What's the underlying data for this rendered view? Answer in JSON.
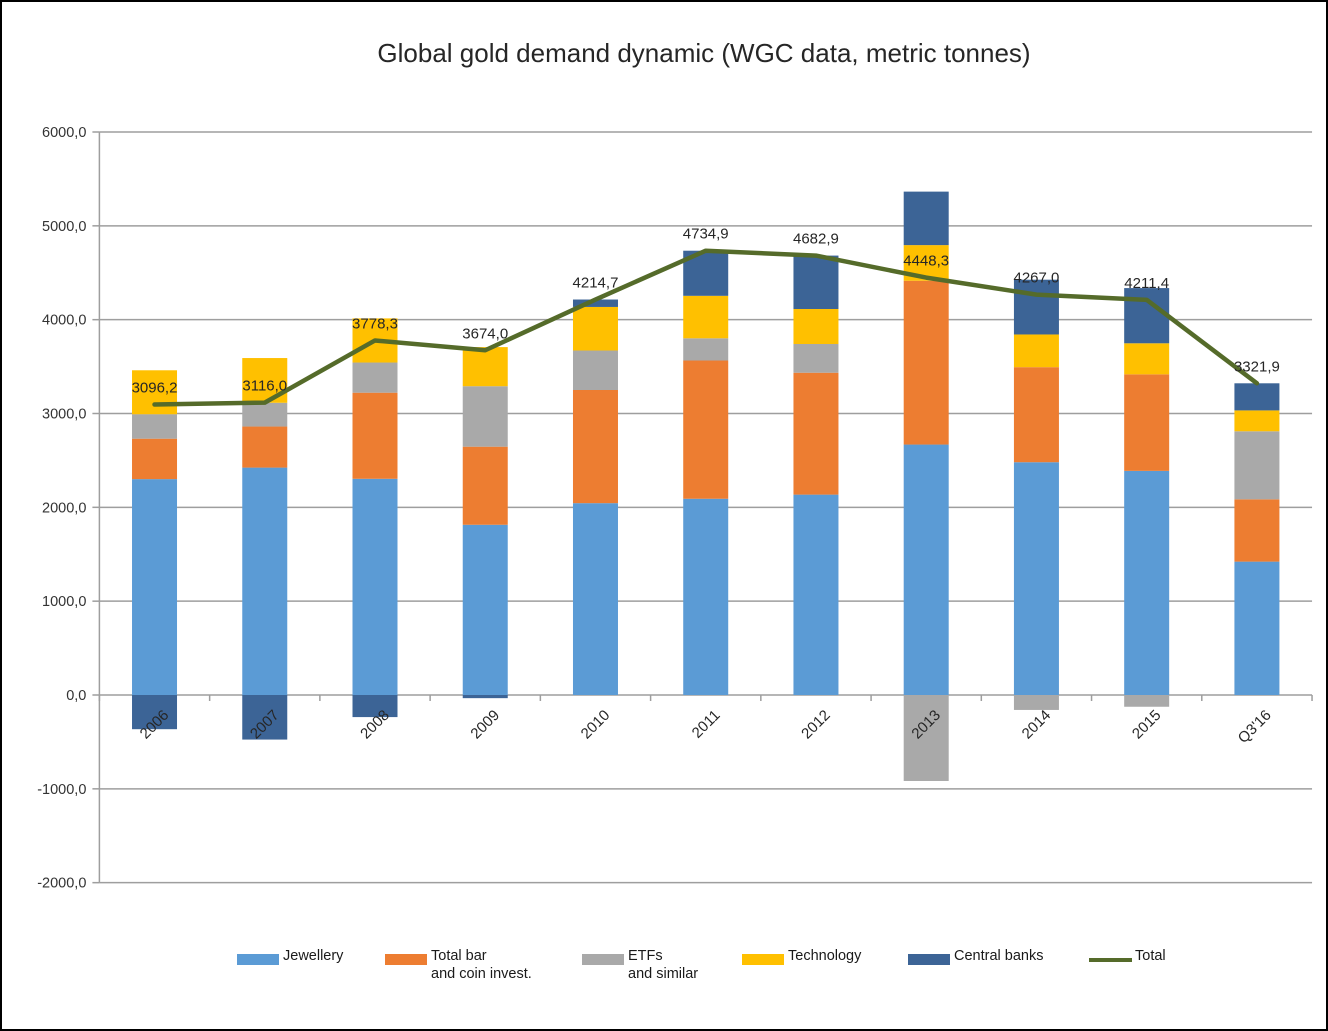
{
  "chart": {
    "title": "Global gold demand dynamic (WGC data, metric tonnes)"
  },
  "chart_data": {
    "type": "bar",
    "subtype": "stacked-column-with-line",
    "title": "Global gold demand dynamic (WGC data, metric tonnes)",
    "categories": [
      "2006",
      "2007",
      "2008",
      "2009",
      "2010",
      "2011",
      "2012",
      "2013",
      "2014",
      "2015",
      "Q3'16"
    ],
    "series": [
      {
        "name": "Jewellery",
        "legend_lines": [
          "Jewellery"
        ],
        "color": "#5B9BD5",
        "values": [
          2300.7,
          2423.5,
          2304.2,
          1814.1,
          2044.5,
          2091.5,
          2135.5,
          2669.0,
          2480.8,
          2388.6,
          1421.5
        ]
      },
      {
        "name": "Total bar and coin invest.",
        "legend_lines": [
          "Total bar",
          "and coin invest."
        ],
        "color": "#ED7D31",
        "values": [
          430.9,
          437.5,
          917.6,
          832.3,
          1205.9,
          1473.2,
          1299.1,
          1745.6,
          1012.9,
          1028.9,
          663.8
        ]
      },
      {
        "name": "ETFs and similar",
        "legend_lines": [
          "ETFs",
          "and similar"
        ],
        "color": "#A9A9A9",
        "values": [
          260.3,
          253.3,
          321.4,
          644.3,
          420.8,
          236.7,
          306.2,
          -916.3,
          -159.1,
          -125.2,
          725.2
        ]
      },
      {
        "name": "Technology",
        "legend_lines": [
          "Technology"
        ],
        "color": "#FFC000",
        "values": [
          468.7,
          476.7,
          470.5,
          416.9,
          464.3,
          452.7,
          372.8,
          380.0,
          348.5,
          330.7,
          222.5
        ]
      },
      {
        "name": "Central banks",
        "legend_lines": [
          "Central banks"
        ],
        "color": "#3C6496",
        "values": [
          -364.4,
          -475.0,
          -235.4,
          -33.6,
          79.2,
          480.8,
          569.3,
          570.0,
          583.9,
          588.4,
          288.9
        ]
      }
    ],
    "line_series": {
      "name": "Total",
      "legend_lines": [
        "Total"
      ],
      "color": "#556B2A",
      "values": [
        3096.2,
        3116.0,
        3778.3,
        3674.0,
        4214.7,
        4734.9,
        4682.9,
        4448.3,
        4267.0,
        4211.4,
        3321.9
      ]
    },
    "data_labels": [
      "3096,2",
      "3116,0",
      "3778,3",
      "3674,0",
      "4214,7",
      "4734,9",
      "4682,9",
      "4448,3",
      "4267,0",
      "4211,4",
      "3321,9"
    ],
    "y_axis": {
      "min": -2000,
      "max": 6000,
      "step": 1000,
      "tick_labels": [
        "6000,0",
        "5000,0",
        "4000,0",
        "3000,0",
        "2000,0",
        "1000,0",
        "0,0",
        "-1000,0",
        "-2000,0"
      ]
    },
    "grid": true,
    "legend_position": "bottom"
  }
}
